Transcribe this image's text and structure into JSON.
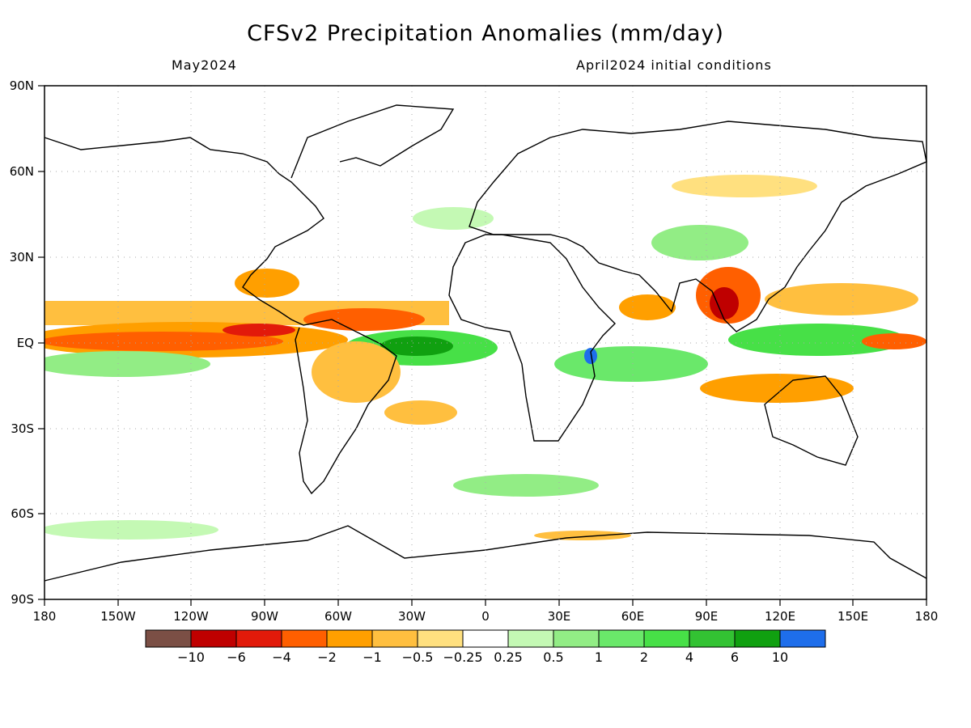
{
  "header": {
    "title": "CFSv2 Precipitation Anomalies (mm/day)",
    "valid_month": "May2024",
    "initial_conditions": "April2024 initial conditions"
  },
  "map": {
    "projection": "equirectangular",
    "lon_range": [
      -180,
      180
    ],
    "lat_range": [
      -90,
      90
    ],
    "lat_ticks": [
      "90N",
      "60N",
      "30N",
      "EQ",
      "30S",
      "60S",
      "90S"
    ],
    "lon_ticks": [
      "180",
      "150W",
      "120W",
      "90W",
      "60W",
      "30W",
      "0",
      "30E",
      "60E",
      "90E",
      "120E",
      "150E",
      "180"
    ]
  },
  "legend": {
    "colors": [
      "#7b4f45",
      "#bf0000",
      "#e21a0a",
      "#ff5f00",
      "#ff9f00",
      "#ffbf3f",
      "#ffe07f",
      "#ffffff",
      "#c4f9b4",
      "#92ed85",
      "#6ae86a",
      "#47e047",
      "#33c233",
      "#10a010",
      "#1e6eeb"
    ],
    "labels": [
      "−10",
      "−6",
      "−4",
      "−2",
      "−1",
      "−0.5",
      "−0.25",
      "0.25",
      "0.5",
      "1",
      "2",
      "4",
      "6",
      "10"
    ]
  }
}
